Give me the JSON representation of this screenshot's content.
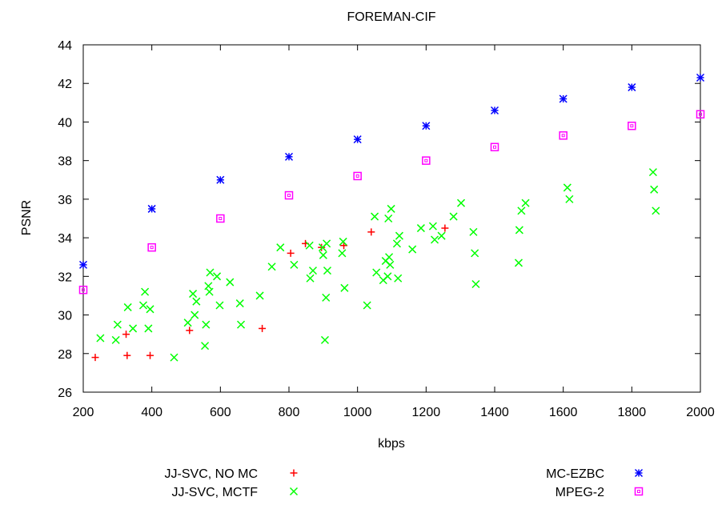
{
  "chart_data": {
    "type": "scatter",
    "title": "FOREMAN-CIF",
    "xlabel": "kbps",
    "ylabel": "PSNR",
    "xlim": [
      200,
      2000
    ],
    "ylim": [
      26,
      44
    ],
    "x_ticks": [
      200,
      400,
      600,
      800,
      1000,
      1200,
      1400,
      1600,
      1800,
      2000
    ],
    "y_ticks": [
      26,
      28,
      30,
      32,
      34,
      36,
      38,
      40,
      42,
      44
    ],
    "grid": false,
    "legend_placement": "bottom",
    "series": [
      {
        "name": "JJ-SVC, NO MC",
        "marker": "plus",
        "color": "#ff0000",
        "points": [
          [
            235,
            27.8
          ],
          [
            325,
            29.0
          ],
          [
            328,
            27.9
          ],
          [
            395,
            27.9
          ],
          [
            510,
            29.2
          ],
          [
            722,
            29.3
          ],
          [
            805,
            33.2
          ],
          [
            848,
            33.7
          ],
          [
            895,
            33.5
          ],
          [
            960,
            33.6
          ],
          [
            1040,
            34.3
          ],
          [
            1255,
            34.5
          ]
        ]
      },
      {
        "name": "JJ-SVC, MCTF",
        "marker": "cross",
        "color": "#00ff00",
        "points": [
          [
            250,
            28.8
          ],
          [
            295,
            28.7
          ],
          [
            300,
            29.5
          ],
          [
            330,
            30.4
          ],
          [
            345,
            29.3
          ],
          [
            375,
            30.5
          ],
          [
            380,
            31.2
          ],
          [
            390,
            29.3
          ],
          [
            395,
            30.3
          ],
          [
            465,
            27.8
          ],
          [
            505,
            29.6
          ],
          [
            520,
            31.1
          ],
          [
            525,
            30.0
          ],
          [
            530,
            30.7
          ],
          [
            555,
            28.4
          ],
          [
            558,
            29.5
          ],
          [
            565,
            31.5
          ],
          [
            568,
            31.2
          ],
          [
            570,
            32.2
          ],
          [
            590,
            32.0
          ],
          [
            598,
            30.5
          ],
          [
            628,
            31.7
          ],
          [
            657,
            30.6
          ],
          [
            660,
            29.5
          ],
          [
            715,
            31.0
          ],
          [
            750,
            32.5
          ],
          [
            775,
            33.5
          ],
          [
            815,
            32.6
          ],
          [
            860,
            33.6
          ],
          [
            862,
            31.9
          ],
          [
            870,
            32.3
          ],
          [
            898,
            33.5
          ],
          [
            900,
            33.1
          ],
          [
            905,
            28.7
          ],
          [
            908,
            30.9
          ],
          [
            910,
            33.7
          ],
          [
            912,
            32.3
          ],
          [
            955,
            33.2
          ],
          [
            958,
            33.8
          ],
          [
            962,
            31.4
          ],
          [
            1028,
            30.5
          ],
          [
            1050,
            35.1
          ],
          [
            1055,
            32.2
          ],
          [
            1075,
            31.8
          ],
          [
            1082,
            32.8
          ],
          [
            1088,
            32.0
          ],
          [
            1090,
            35.0
          ],
          [
            1092,
            33.0
          ],
          [
            1095,
            32.6
          ],
          [
            1098,
            35.5
          ],
          [
            1115,
            33.7
          ],
          [
            1118,
            31.9
          ],
          [
            1122,
            34.1
          ],
          [
            1160,
            33.4
          ],
          [
            1185,
            34.5
          ],
          [
            1220,
            34.6
          ],
          [
            1225,
            33.9
          ],
          [
            1245,
            34.1
          ],
          [
            1280,
            35.1
          ],
          [
            1302,
            35.8
          ],
          [
            1338,
            34.3
          ],
          [
            1342,
            33.2
          ],
          [
            1345,
            31.6
          ],
          [
            1470,
            32.7
          ],
          [
            1472,
            34.4
          ],
          [
            1478,
            35.4
          ],
          [
            1490,
            35.8
          ],
          [
            1612,
            36.6
          ],
          [
            1618,
            36.0
          ],
          [
            1862,
            37.4
          ],
          [
            1865,
            36.5
          ],
          [
            1870,
            35.4
          ]
        ]
      },
      {
        "name": "MC-EZBC",
        "marker": "star",
        "color": "#0000ff",
        "points": [
          [
            200,
            32.6
          ],
          [
            400,
            35.5
          ],
          [
            600,
            37.0
          ],
          [
            800,
            38.2
          ],
          [
            1000,
            39.1
          ],
          [
            1200,
            39.8
          ],
          [
            1400,
            40.6
          ],
          [
            1600,
            41.2
          ],
          [
            1800,
            41.8
          ],
          [
            2000,
            42.3
          ]
        ]
      },
      {
        "name": "MPEG-2",
        "marker": "box",
        "color": "#ff00ff",
        "points": [
          [
            200,
            31.3
          ],
          [
            400,
            33.5
          ],
          [
            600,
            35.0
          ],
          [
            800,
            36.2
          ],
          [
            1000,
            37.2
          ],
          [
            1200,
            38.0
          ],
          [
            1400,
            38.7
          ],
          [
            1600,
            39.3
          ],
          [
            1800,
            39.8
          ],
          [
            2000,
            40.4
          ]
        ]
      }
    ]
  }
}
